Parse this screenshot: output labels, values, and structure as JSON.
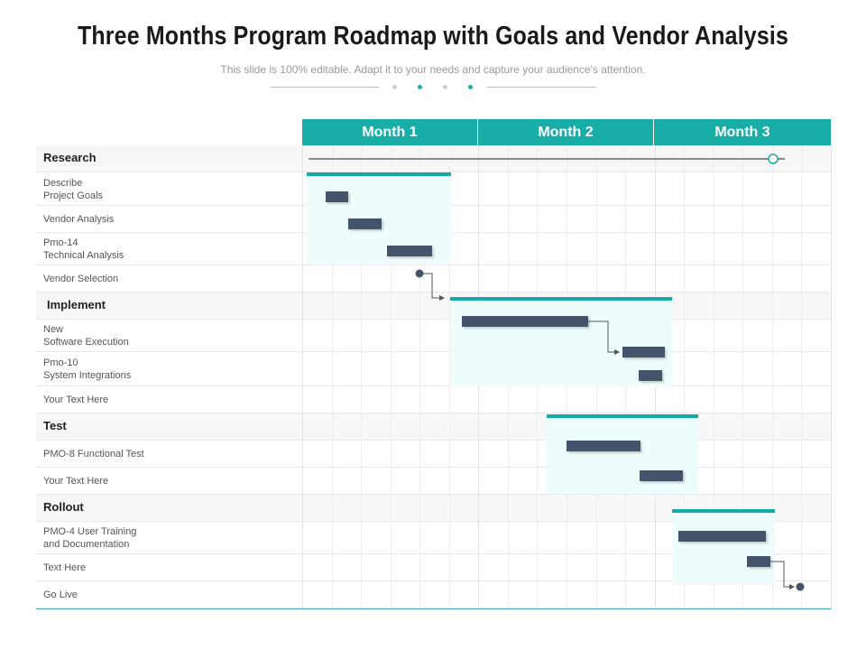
{
  "header": {
    "title": "Three Months Program Roadmap with Goals and Vendor Analysis",
    "subtitle": "This slide is 100% editable. Adapt it to your needs and capture your audience's attention."
  },
  "months": [
    "Month 1",
    "Month 2",
    "Month 3"
  ],
  "rows": [
    {
      "label": "Research",
      "section": true
    },
    {
      "label": "Describe\nProject Goals",
      "section": false
    },
    {
      "label": "Vendor Analysis",
      "section": false
    },
    {
      "label": "Pmo-14\nTechnical Analysis",
      "section": false
    },
    {
      "label": "Vendor Selection",
      "section": false
    },
    {
      "label": "Implement",
      "section": true
    },
    {
      "label": "New\nSoftware Execution",
      "section": false
    },
    {
      "label": "Pmo-10\nSystem Integrations",
      "section": false
    },
    {
      "label": "Your Text Here",
      "section": false
    },
    {
      "label": "Test",
      "section": true
    },
    {
      "label": "PMO-8 Functional Test",
      "section": false
    },
    {
      "label": "Your Text Here",
      "section": false
    },
    {
      "label": "Rollout",
      "section": true
    },
    {
      "label": "PMO-4 User Training\nand Documentation",
      "section": false
    },
    {
      "label": "Text Here",
      "section": false
    },
    {
      "label": "Go Live",
      "section": false
    }
  ],
  "colors": {
    "accent": "#19ada8",
    "task": "#44546a",
    "phase_fill": "#eefcfc"
  }
}
